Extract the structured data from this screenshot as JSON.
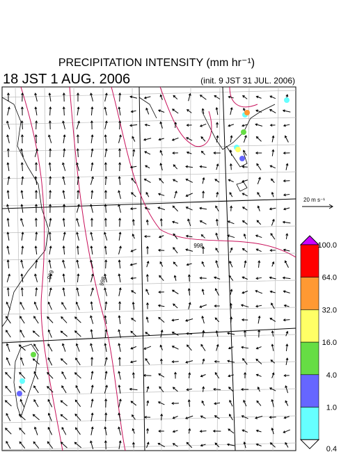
{
  "header": {
    "title": "PRECIPITATION INTENSITY (mm hr⁻¹)",
    "time": "18 JST 1 AUG. 2006",
    "init": "(init. 9 JST 31 JUL. 2006)"
  },
  "map": {
    "contour_labels": [
      "998",
      "999",
      "998"
    ],
    "vector_scale": "20 m s⁻¹"
  },
  "colorbar": {
    "labels": [
      "100.0",
      "64.0",
      "32.0",
      "16.0",
      "4.0",
      "1.0",
      "0.4"
    ],
    "colors": [
      "#cc00ff",
      "#ff0000",
      "#ff9933",
      "#ffff66",
      "#66dd44",
      "#6666ff",
      "#66ffff",
      "#ffffff"
    ]
  }
}
